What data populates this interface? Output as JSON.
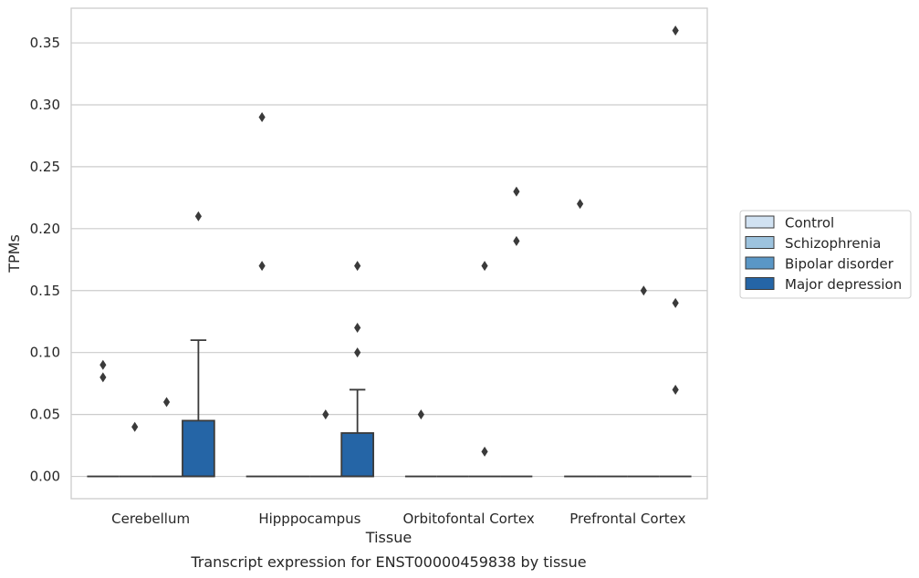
{
  "chart_data": {
    "type": "box",
    "title": "Transcript expression for ENST00000459838 by tissue",
    "xlabel": "Tissue",
    "ylabel": "TPMs",
    "categories": [
      "Cerebellum",
      "Hipppocampus",
      "Orbitofontal Cortex",
      "Prefrontal Cortex"
    ],
    "ylim": [
      -0.018,
      0.378
    ],
    "yticks": [
      "0.00",
      "0.05",
      "0.10",
      "0.15",
      "0.20",
      "0.25",
      "0.30",
      "0.35"
    ],
    "ytick_values": [
      0,
      0.05,
      0.1,
      0.15,
      0.2,
      0.25,
      0.3,
      0.35
    ],
    "grid": true,
    "legend_position": "right",
    "series": [
      {
        "name": "Control",
        "color": "#d1e2f2",
        "boxes": [
          {
            "q1": 0,
            "median": 0,
            "q3": 0,
            "whisker_low": 0,
            "whisker_high": 0,
            "outliers": [
              0.09,
              0.08
            ]
          },
          {
            "q1": 0,
            "median": 0,
            "q3": 0,
            "whisker_low": 0,
            "whisker_high": 0,
            "outliers": [
              0.29,
              0.17
            ]
          },
          {
            "q1": 0,
            "median": 0,
            "q3": 0,
            "whisker_low": 0,
            "whisker_high": 0,
            "outliers": [
              0.05
            ]
          },
          {
            "q1": 0,
            "median": 0,
            "q3": 0,
            "whisker_low": 0,
            "whisker_high": 0,
            "outliers": [
              0.22
            ]
          }
        ]
      },
      {
        "name": "Schizophrenia",
        "color": "#9dc3de",
        "boxes": [
          {
            "q1": 0,
            "median": 0,
            "q3": 0,
            "whisker_low": 0,
            "whisker_high": 0,
            "outliers": [
              0.04
            ]
          },
          {
            "q1": 0,
            "median": 0,
            "q3": 0,
            "whisker_low": 0,
            "whisker_high": 0,
            "outliers": []
          },
          {
            "q1": 0,
            "median": 0,
            "q3": 0,
            "whisker_low": 0,
            "whisker_high": 0,
            "outliers": []
          },
          {
            "q1": 0,
            "median": 0,
            "q3": 0,
            "whisker_low": 0,
            "whisker_high": 0,
            "outliers": []
          }
        ]
      },
      {
        "name": "Bipolar disorder",
        "color": "#5a97c6",
        "boxes": [
          {
            "q1": 0,
            "median": 0,
            "q3": 0,
            "whisker_low": 0,
            "whisker_high": 0,
            "outliers": [
              0.06
            ]
          },
          {
            "q1": 0,
            "median": 0,
            "q3": 0,
            "whisker_low": 0,
            "whisker_high": 0,
            "outliers": [
              0.05
            ]
          },
          {
            "q1": 0,
            "median": 0,
            "q3": 0,
            "whisker_low": 0,
            "whisker_high": 0,
            "outliers": [
              0.17,
              0.02
            ]
          },
          {
            "q1": 0,
            "median": 0,
            "q3": 0,
            "whisker_low": 0,
            "whisker_high": 0,
            "outliers": [
              0.15
            ]
          }
        ]
      },
      {
        "name": "Major depression",
        "color": "#2565a6",
        "boxes": [
          {
            "q1": 0,
            "median": 0,
            "q3": 0.045,
            "whisker_low": 0,
            "whisker_high": 0.11,
            "outliers": [
              0.21
            ]
          },
          {
            "q1": 0,
            "median": 0,
            "q3": 0.035,
            "whisker_low": 0,
            "whisker_high": 0.07,
            "outliers": [
              0.17,
              0.12,
              0.1
            ]
          },
          {
            "q1": 0,
            "median": 0,
            "q3": 0,
            "whisker_low": 0,
            "whisker_high": 0,
            "outliers": [
              0.23,
              0.19
            ]
          },
          {
            "q1": 0,
            "median": 0,
            "q3": 0,
            "whisker_low": 0,
            "whisker_high": 0,
            "outliers": [
              0.36,
              0.14,
              0.07
            ]
          }
        ]
      }
    ]
  }
}
